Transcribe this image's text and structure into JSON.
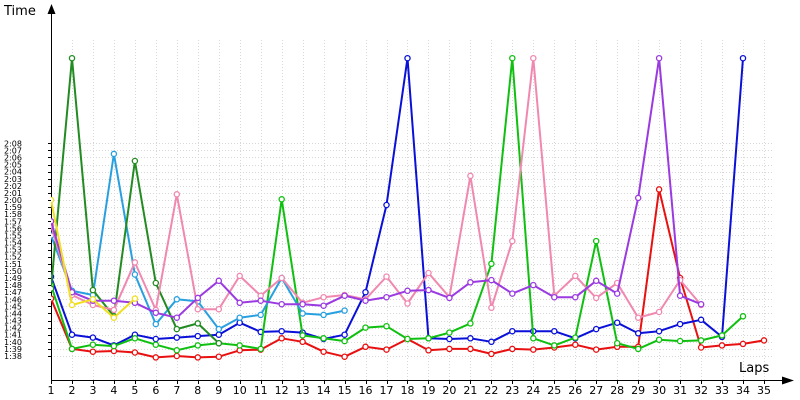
{
  "chart_data": {
    "type": "line",
    "ylabel": "Time",
    "xlabel": "Laps",
    "x": [
      1,
      2,
      3,
      4,
      5,
      6,
      7,
      8,
      9,
      10,
      11,
      12,
      13,
      14,
      15,
      16,
      17,
      18,
      19,
      20,
      21,
      22,
      23,
      24,
      25,
      26,
      27,
      28,
      29,
      30,
      31,
      32,
      33,
      34,
      35
    ],
    "xlim": [
      1,
      35
    ],
    "ylim": [
      "1:38",
      "2:08"
    ],
    "y_ticks": [
      "1:38",
      "1:39",
      "1:40",
      "1:41",
      "1:42",
      "1:43",
      "1:44",
      "1:45",
      "1:46",
      "1:47",
      "1:48",
      "1:49",
      "1:50",
      "1:51",
      "1:52",
      "1:53",
      "1:54",
      "1:55",
      "1:56",
      "1:57",
      "1:58",
      "1:59",
      "2:00",
      "2:01",
      "2:02",
      "2:03",
      "2:04",
      "2:05",
      "2:06",
      "2:07",
      "2:08"
    ],
    "grid": true,
    "series": [
      {
        "color": "#e81010",
        "values": [
          "1:46.1",
          "1:39.0",
          "1:38.6",
          "1:38.7",
          "1:38.5",
          "1:37.8",
          "1:38.0",
          "1:37.8",
          "1:37.9",
          "1:38.8",
          "1:38.9",
          "1:40.5",
          "1:40.0",
          "1:38.6",
          "1:37.9",
          "1:39.3",
          "1:38.9",
          "1:40.4",
          "1:38.8",
          "1:39.0",
          "1:39.0",
          "1:38.3",
          "1:39.0",
          "1:38.9",
          "1:39.2",
          "1:39.6",
          "1:38.9",
          "1:39.3",
          "1:39.3",
          "2:01.5",
          "1:49.0",
          "1:39.2",
          "1:39.5",
          "1:39.7",
          "1:40.2"
        ]
      },
      {
        "color": "#0a10d8",
        "values": [
          "1:49.2",
          "1:41.0",
          "1:40.6",
          "1:39.5",
          "1:41.0",
          "1:40.4",
          "1:40.6",
          "1:40.8",
          "1:41.0",
          "1:42.7",
          "1:41.4",
          "1:41.5",
          "1:41.3",
          "1:40.4",
          "1:41.0",
          "1:47.0",
          "1:59.3",
          "2:20.0",
          "1:40.5",
          "1:40.4",
          "1:40.5",
          "1:40.0",
          "1:41.5",
          "1:41.5",
          "1:41.5",
          "1:40.5",
          "1:41.8",
          "1:42.7",
          "1:41.2",
          "1:41.5",
          "1:42.5",
          "1:43.1",
          "1:40.7",
          "2:20.0",
          null
        ]
      },
      {
        "color": "#10c010",
        "values": [
          "1:48.0",
          "1:39.0",
          "1:39.6",
          "1:39.4",
          "1:40.5",
          "1:39.6",
          "1:38.8",
          "1:39.5",
          "1:39.8",
          "1:39.5",
          "1:39.0",
          "2:00.1",
          "1:40.9",
          "1:40.5",
          "1:40.1",
          "1:42.0",
          "1:42.2",
          "1:40.4",
          "1:40.5",
          "1:41.3",
          "1:42.6",
          "1:51.0",
          "2:20.0",
          "1:40.5",
          "1:39.5",
          "1:40.6",
          "1:54.2",
          "1:39.8",
          "1:39.0",
          "1:40.3",
          "1:40.1",
          "1:40.2",
          "1:40.9",
          "1:43.6",
          null
        ]
      },
      {
        "color": "#28a0e0",
        "values": [
          "1:55.0",
          "1:47.2",
          "1:46.6",
          "2:06.5",
          "1:49.5",
          "1:42.5",
          "1:46.0",
          "1:45.7",
          "1:41.8",
          "1:43.4",
          "1:43.8",
          "1:49.0",
          "1:44.0",
          "1:43.8",
          "1:44.4",
          null,
          null,
          null,
          null,
          null,
          null,
          null,
          null,
          null,
          null,
          null,
          null,
          null,
          null,
          null,
          null,
          null,
          null,
          null,
          null
        ]
      },
      {
        "color": "#228b22",
        "values": [
          "1:47.5",
          "2:20.0",
          "1:47.3",
          "1:43.6",
          "2:05.5",
          "1:48.3",
          "1:41.8",
          "1:42.6",
          "1:39.8",
          null,
          null,
          null,
          null,
          null,
          null,
          null,
          null,
          null,
          null,
          null,
          null,
          null,
          null,
          null,
          null,
          null,
          null,
          null,
          null,
          null,
          null,
          null,
          null,
          null,
          null
        ]
      },
      {
        "color": "#f088b0",
        "values": [
          "1:56.4",
          "1:46.6",
          "1:45.2",
          "1:44.5",
          "1:51.2",
          "1:44.5",
          "2:00.8",
          "1:44.6",
          "1:44.6",
          "1:49.3",
          "1:46.5",
          "1:49.0",
          "1:45.5",
          "1:46.3",
          "1:46.6",
          "1:46.0",
          "1:49.2",
          "1:45.4",
          "1:49.7",
          "1:46.3",
          "2:03.4",
          "1:44.8",
          "1:54.2",
          "2:20.0",
          "1:46.5",
          "1:49.3",
          "1:46.2",
          "1:48.3",
          "1:43.4",
          "1:44.2",
          "1:48.7",
          "1:45.2",
          null,
          null,
          null
        ]
      },
      {
        "color": "#9a3ae0",
        "values": [
          "1:57.0",
          "1:47.0",
          "1:45.8",
          "1:45.8",
          "1:45.5",
          "1:44.1",
          "1:43.4",
          "1:46.2",
          "1:48.6",
          "1:45.5",
          "1:45.8",
          "1:45.3",
          "1:45.3",
          "1:45.1",
          "1:46.5",
          "1:45.8",
          "1:46.3",
          "1:47.2",
          "1:47.3",
          "1:46.2",
          "1:48.4",
          "1:48.7",
          "1:46.8",
          "1:48.0",
          "1:46.3",
          "1:46.3",
          "1:48.6",
          "1:46.8",
          "2:00.3",
          "2:20.0",
          "1:46.5",
          "1:45.3",
          null,
          null,
          null
        ]
      },
      {
        "color": "#f0e020",
        "values": [
          "2:00.0",
          "1:45.2",
          "1:46.0",
          "1:43.4",
          "1:46.1",
          null,
          null,
          null,
          null,
          null,
          null,
          null,
          null,
          null,
          null,
          null,
          null,
          null,
          null,
          null,
          null,
          null,
          null,
          null,
          null,
          null,
          null,
          null,
          null,
          null,
          null,
          null,
          null,
          null,
          null
        ]
      }
    ]
  }
}
